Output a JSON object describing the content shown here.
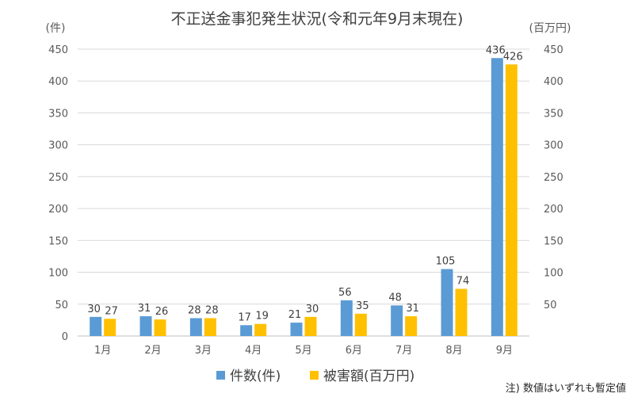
{
  "chart_data": {
    "type": "bar",
    "title": "不正送金事犯発生状況(令和元年9月末現在)",
    "left_unit": "(件)",
    "right_unit": "(百万円)",
    "categories": [
      "1月",
      "2月",
      "3月",
      "4月",
      "5月",
      "6月",
      "7月",
      "8月",
      "9月"
    ],
    "series": [
      {
        "name": "件数(件)",
        "axis": "left",
        "color": "#5b9bd5",
        "values": [
          30,
          31,
          28,
          17,
          21,
          56,
          48,
          105,
          436
        ]
      },
      {
        "name": "被害額(百万円)",
        "axis": "right",
        "color": "#ffc000",
        "values": [
          27,
          26,
          28,
          19,
          30,
          35,
          31,
          74,
          426
        ]
      }
    ],
    "ylim_left": [
      0,
      450
    ],
    "ylim_right": [
      0,
      450
    ],
    "yticks_left": [
      0,
      50,
      100,
      150,
      200,
      250,
      300,
      350,
      400,
      450
    ],
    "yticks_right": [
      50,
      100,
      150,
      200,
      250,
      300,
      350,
      400,
      450
    ],
    "grid": true,
    "legend_position": "bottom",
    "note": "注) 数値はいずれも暫定値"
  }
}
